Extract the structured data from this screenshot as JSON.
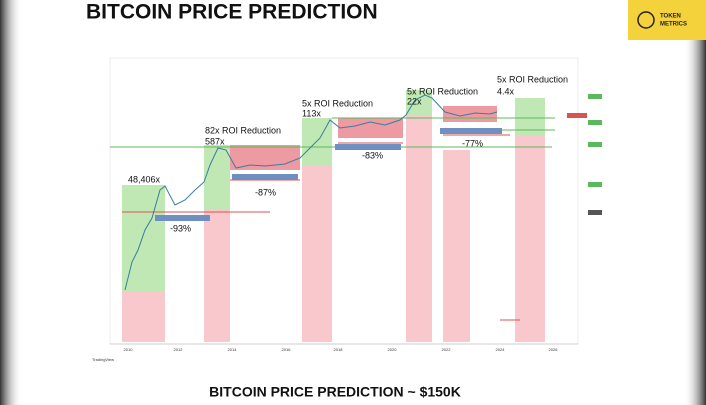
{
  "header": {
    "title": "BITCOIN PRICE PREDICTION"
  },
  "logo": {
    "text": [
      "TOKEN",
      "METRICS"
    ]
  },
  "chart": {
    "annotations": [
      "48,406x",
      "-93%",
      "82x ROI Reduction",
      "587x",
      "-87%",
      "5x ROI Reduction",
      "113x",
      "-83%",
      "5x ROI Reduction",
      "22x",
      "-77%",
      "5x ROI Reduction",
      "4.4x"
    ],
    "x_axis_labels": [
      "2010",
      "2012",
      "2014",
      "2016",
      "2018",
      "2020",
      "2022",
      "2024",
      "2026"
    ],
    "source": "TradingView"
  },
  "footer": {
    "caption": "BITCOIN PRICE PREDICTION ~ $150K"
  }
}
